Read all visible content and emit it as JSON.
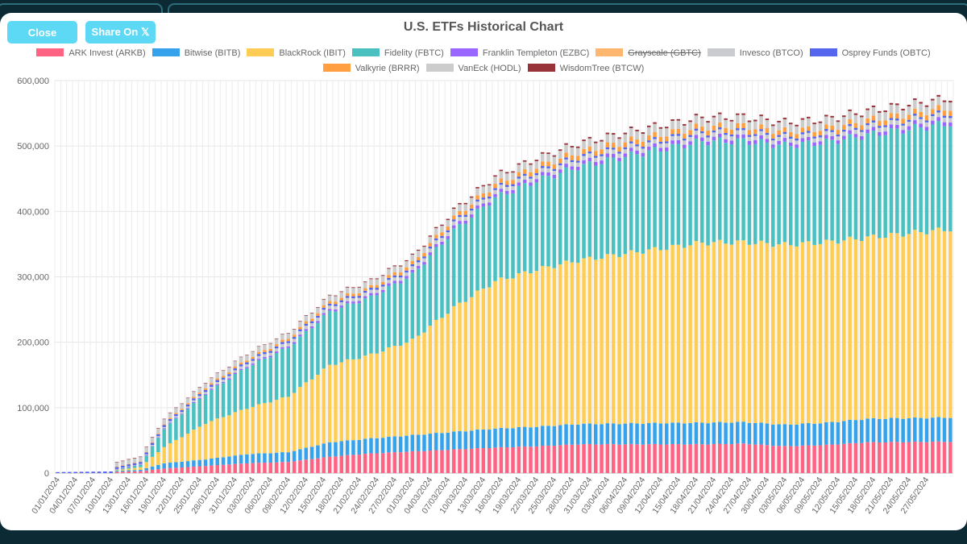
{
  "header": {
    "close_label": "Close",
    "share_label": "Share On 𝕏"
  },
  "chart_data": {
    "type": "bar",
    "stacked": true,
    "title": "U.S. ETFs Historical Chart",
    "xlabel": "",
    "ylabel": "",
    "ylim": [
      0,
      600000
    ],
    "yticks": [
      "0",
      "100,000",
      "200,000",
      "300,000",
      "400,000",
      "500,000",
      "600,000"
    ],
    "grid": true,
    "legend_position": "top",
    "x_start": "2024-01-01",
    "x_end": "2024-05-31",
    "x_tick_labels": [
      "01/01/2024",
      "04/01/2024",
      "07/01/2024",
      "10/01/2024",
      "13/01/2024",
      "16/01/2024",
      "19/01/2024",
      "22/01/2024",
      "25/01/2024",
      "28/01/2024",
      "31/01/2024",
      "03/02/2024",
      "06/02/2024",
      "09/02/2024",
      "12/02/2024",
      "15/02/2024",
      "18/02/2024",
      "21/02/2024",
      "24/02/2024",
      "27/02/2024",
      "01/03/2024",
      "04/03/2024",
      "07/03/2024",
      "10/03/2024",
      "13/03/2024",
      "16/03/2024",
      "19/03/2024",
      "22/03/2024",
      "25/03/2024",
      "28/03/2024",
      "31/03/2024",
      "03/04/2024",
      "06/04/2024",
      "09/04/2024",
      "12/04/2024",
      "15/04/2024",
      "18/04/2024",
      "21/04/2024",
      "24/04/2024",
      "27/04/2024",
      "30/04/2024",
      "03/05/2024",
      "06/05/2024",
      "09/05/2024",
      "12/05/2024",
      "15/05/2024",
      "18/05/2024",
      "21/05/2024",
      "24/05/2024",
      "27/05/2024"
    ],
    "legend_row1": [
      {
        "name": "ARK Invest (ARKB)",
        "color": "#ff6384",
        "hidden": false
      },
      {
        "name": "Bitwise (BITB)",
        "color": "#36a2eb",
        "hidden": false
      },
      {
        "name": "BlackRock (IBIT)",
        "color": "#ffcd56",
        "hidden": false
      },
      {
        "name": "Fidelity (FBTC)",
        "color": "#4bc0c0",
        "hidden": false
      },
      {
        "name": "Franklin Templeton (EZBC)",
        "color": "#9966ff",
        "hidden": false
      },
      {
        "name": "Grayscale (GBTC)",
        "color": "#ff9f40",
        "hidden": true
      },
      {
        "name": "Invesco (BTCO)",
        "color": "#c9cbcf",
        "hidden": false
      },
      {
        "name": "Osprey Funds (OBTC)",
        "color": "#5566ee",
        "hidden": false
      }
    ],
    "legend_row2": [
      {
        "name": "Valkyrie (BRRR)",
        "color": "#ff9f40",
        "hidden": false
      },
      {
        "name": "VanEck (HODL)",
        "color": "#cccccc",
        "hidden": false
      },
      {
        "name": "WisdomTree (BTCW)",
        "color": "#99333a",
        "hidden": false
      }
    ],
    "series_order": [
      "ARKB",
      "BITB",
      "IBIT",
      "FBTC",
      "EZBC",
      "BTCO",
      "OBTC",
      "BRRR",
      "HODL",
      "BTCW"
    ],
    "series_colors": [
      "#ff6384",
      "#36a2eb",
      "#ffcd56",
      "#4bc0c0",
      "#9966ff",
      "#c9cbcf",
      "#5566ee",
      "#ff9f40",
      "#cccccc",
      "#99333a"
    ],
    "anchors": [
      {
        "date": "2024-01-01",
        "ARKB": 0,
        "BITB": 0,
        "IBIT": 0,
        "FBTC": 0,
        "EZBC": 0,
        "BTCO": 0,
        "OBTC": 1500,
        "BRRR": 0,
        "HODL": 0,
        "BTCW": 0
      },
      {
        "date": "2024-01-10",
        "ARKB": 0,
        "BITB": 0,
        "IBIT": 0,
        "FBTC": 0,
        "EZBC": 0,
        "BTCO": 0,
        "OBTC": 2500,
        "BRRR": 0,
        "HODL": 0,
        "BTCW": 0
      },
      {
        "date": "2024-01-11",
        "ARKB": 2000,
        "BITB": 1500,
        "IBIT": 1000,
        "FBTC": 1000,
        "EZBC": 300,
        "BTCO": 500,
        "OBTC": 3000,
        "BRRR": 500,
        "HODL": 7000,
        "BTCW": 100
      },
      {
        "date": "2024-01-15",
        "ARKB": 3000,
        "BITB": 2000,
        "IBIT": 4000,
        "FBTC": 4000,
        "EZBC": 500,
        "BTCO": 800,
        "OBTC": 3000,
        "BRRR": 600,
        "HODL": 7500,
        "BTCW": 150
      },
      {
        "date": "2024-01-19",
        "ARKB": 7000,
        "BITB": 8000,
        "IBIT": 25000,
        "FBTC": 28000,
        "EZBC": 1000,
        "BTCO": 2000,
        "OBTC": 3000,
        "BRRR": 1500,
        "HODL": 8000,
        "BTCW": 300
      },
      {
        "date": "2024-01-26",
        "ARKB": 11000,
        "BITB": 10000,
        "IBIT": 55000,
        "FBTC": 45000,
        "EZBC": 1500,
        "BTCO": 3000,
        "OBTC": 3000,
        "BRRR": 2500,
        "HODL": 8000,
        "BTCW": 500
      },
      {
        "date": "2024-02-02",
        "ARKB": 15000,
        "BITB": 14000,
        "IBIT": 70000,
        "FBTC": 63000,
        "EZBC": 2000,
        "BTCO": 4000,
        "OBTC": 3000,
        "BRRR": 3000,
        "HODL": 8000,
        "BTCW": 700
      },
      {
        "date": "2024-02-09",
        "ARKB": 17000,
        "BITB": 15000,
        "IBIT": 85000,
        "FBTC": 75000,
        "EZBC": 2500,
        "BTCO": 5000,
        "OBTC": 3000,
        "BRRR": 3500,
        "HODL": 8000,
        "BTCW": 800
      },
      {
        "date": "2024-02-16",
        "ARKB": 25000,
        "BITB": 22000,
        "IBIT": 118000,
        "FBTC": 82000,
        "EZBC": 3000,
        "BTCO": 5000,
        "OBTC": 3000,
        "BRRR": 4000,
        "HODL": 8500,
        "BTCW": 1000
      },
      {
        "date": "2024-02-23",
        "ARKB": 30000,
        "BITB": 23000,
        "IBIT": 128000,
        "FBTC": 88000,
        "EZBC": 3500,
        "BTCO": 5000,
        "OBTC": 3000,
        "BRRR": 4000,
        "HODL": 9000,
        "BTCW": 1200
      },
      {
        "date": "2024-03-01",
        "ARKB": 33000,
        "BITB": 25000,
        "IBIT": 145000,
        "FBTC": 100000,
        "EZBC": 4000,
        "BTCO": 5500,
        "OBTC": 3000,
        "BRRR": 5000,
        "HODL": 9500,
        "BTCW": 1500
      },
      {
        "date": "2024-03-08",
        "ARKB": 36000,
        "BITB": 27000,
        "IBIT": 190000,
        "FBTC": 118000,
        "EZBC": 4500,
        "BTCO": 6000,
        "OBTC": 3000,
        "BRRR": 6000,
        "HODL": 10000,
        "BTCW": 2000
      },
      {
        "date": "2024-03-15",
        "ARKB": 39000,
        "BITB": 29000,
        "IBIT": 225000,
        "FBTC": 128000,
        "EZBC": 5000,
        "BTCO": 6000,
        "OBTC": 3000,
        "BRRR": 6500,
        "HODL": 11000,
        "BTCW": 2000
      },
      {
        "date": "2024-03-22",
        "ARKB": 41000,
        "BITB": 30000,
        "IBIT": 240000,
        "FBTC": 136000,
        "EZBC": 5200,
        "BTCO": 6000,
        "OBTC": 3000,
        "BRRR": 7000,
        "HODL": 11500,
        "BTCW": 2200
      },
      {
        "date": "2024-03-29",
        "ARKB": 44000,
        "BITB": 31000,
        "IBIT": 250000,
        "FBTC": 143000,
        "EZBC": 5500,
        "BTCO": 6500,
        "OBTC": 3000,
        "BRRR": 7500,
        "HODL": 12000,
        "BTCW": 2300
      },
      {
        "date": "2024-04-08",
        "ARKB": 44000,
        "BITB": 32000,
        "IBIT": 262000,
        "FBTC": 150000,
        "EZBC": 5600,
        "BTCO": 6500,
        "OBTC": 3000,
        "BRRR": 7500,
        "HODL": 12500,
        "BTCW": 2400
      },
      {
        "date": "2024-04-19",
        "ARKB": 44000,
        "BITB": 33000,
        "IBIT": 275000,
        "FBTC": 155000,
        "EZBC": 5700,
        "BTCO": 6500,
        "OBTC": 3000,
        "BRRR": 7500,
        "HODL": 12500,
        "BTCW": 2400
      },
      {
        "date": "2024-04-26",
        "ARKB": 45000,
        "BITB": 33000,
        "IBIT": 275000,
        "FBTC": 155000,
        "EZBC": 5700,
        "BTCO": 6500,
        "OBTC": 3000,
        "BRRR": 7500,
        "HODL": 12500,
        "BTCW": 2400
      },
      {
        "date": "2024-05-03",
        "ARKB": 41000,
        "BITB": 33000,
        "IBIT": 275000,
        "FBTC": 152000,
        "EZBC": 5500,
        "BTCO": 6000,
        "OBTC": 3000,
        "BRRR": 7000,
        "HODL": 12000,
        "BTCW": 2400
      },
      {
        "date": "2024-05-10",
        "ARKB": 43000,
        "BITB": 34000,
        "IBIT": 276000,
        "FBTC": 153000,
        "EZBC": 5500,
        "BTCO": 6000,
        "OBTC": 3000,
        "BRRR": 7000,
        "HODL": 12000,
        "BTCW": 2400
      },
      {
        "date": "2024-05-17",
        "ARKB": 47000,
        "BITB": 36000,
        "IBIT": 277000,
        "FBTC": 157000,
        "EZBC": 5700,
        "BTCO": 6500,
        "OBTC": 3000,
        "BRRR": 7500,
        "HODL": 12500,
        "BTCW": 2500
      },
      {
        "date": "2024-05-31",
        "ARKB": 48000,
        "BITB": 37000,
        "IBIT": 288000,
        "FBTC": 162000,
        "EZBC": 6000,
        "BTCO": 7000,
        "OBTC": 3000,
        "BRRR": 8000,
        "HODL": 13000,
        "BTCW": 2600
      }
    ]
  }
}
